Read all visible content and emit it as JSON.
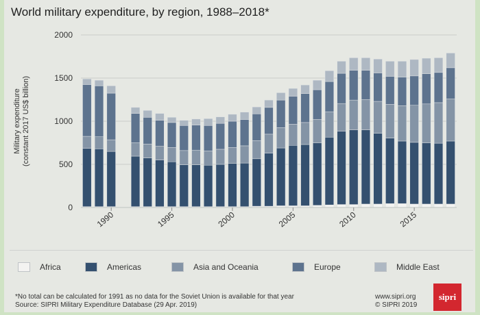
{
  "title": "World military expenditure, by region, 1988–2018*",
  "footnote": {
    "line1": "*No total can be calculated for 1991 as no data for the Soviet Union is available for that year",
    "line2": "Source: SIPRI Military Expenditure Database (29 Apr. 2019)"
  },
  "site": {
    "url": "www.sipri.org",
    "copyright": "© SIPRI 2019"
  },
  "logo_text": "sipri",
  "colors": {
    "Africa": "#f3f3f1",
    "Americas": "#34506f",
    "Asia and Oceania": "#8494a6",
    "Europe": "#5d738e",
    "Middle East": "#aeb8c3"
  },
  "chart_data": {
    "type": "bar",
    "stacked": true,
    "title": "World military expenditure, by region, 1988–2018*",
    "ylabel": "Military expenditure (constant 2017 US$ billion)",
    "ylabel_lines": [
      "Military expenditure",
      "(constant 2017 US$ billion)"
    ],
    "xlabel": "",
    "ylim": [
      0,
      2000
    ],
    "yticks": [
      0,
      500,
      1000,
      1500,
      2000
    ],
    "xticks": [
      1990,
      1995,
      2000,
      2005,
      2010,
      2015
    ],
    "grid": true,
    "legend_position": "bottom",
    "categories": [
      1988,
      1989,
      1990,
      1991,
      1992,
      1993,
      1994,
      1995,
      1996,
      1997,
      1998,
      1999,
      2000,
      2001,
      2002,
      2003,
      2004,
      2005,
      2006,
      2007,
      2008,
      2009,
      2010,
      2011,
      2012,
      2013,
      2014,
      2015,
      2016,
      2017,
      2018
    ],
    "series": [
      {
        "name": "Africa",
        "values": [
          10,
          10,
          10,
          null,
          10,
          10,
          10,
          10,
          10,
          10,
          10,
          10,
          10,
          10,
          15,
          15,
          20,
          20,
          20,
          25,
          30,
          35,
          35,
          40,
          40,
          45,
          45,
          40,
          40,
          40,
          40
        ]
      },
      {
        "name": "Americas",
        "values": [
          675,
          670,
          640,
          null,
          585,
          565,
          540,
          520,
          485,
          485,
          480,
          490,
          500,
          505,
          550,
          615,
          670,
          700,
          710,
          725,
          785,
          850,
          865,
          860,
          820,
          760,
          725,
          715,
          710,
          705,
          730
        ]
      },
      {
        "name": "Asia and Oceania",
        "values": [
          140,
          140,
          135,
          null,
          155,
          160,
          160,
          165,
          165,
          170,
          165,
          175,
          185,
          200,
          210,
          220,
          235,
          245,
          255,
          270,
          295,
          320,
          345,
          350,
          370,
          390,
          410,
          430,
          450,
          470,
          490
        ]
      },
      {
        "name": "Europe",
        "values": [
          600,
          590,
          540,
          null,
          340,
          310,
          300,
          290,
          290,
          290,
          295,
          300,
          305,
          305,
          310,
          310,
          320,
          325,
          335,
          345,
          350,
          350,
          345,
          340,
          330,
          325,
          330,
          340,
          350,
          350,
          360
        ]
      },
      {
        "name": "Middle East",
        "values": [
          65,
          65,
          85,
          null,
          70,
          80,
          80,
          60,
          60,
          70,
          80,
          75,
          80,
          85,
          80,
          85,
          85,
          90,
          100,
          110,
          125,
          140,
          145,
          145,
          160,
          175,
          185,
          190,
          180,
          170,
          170
        ]
      }
    ]
  }
}
